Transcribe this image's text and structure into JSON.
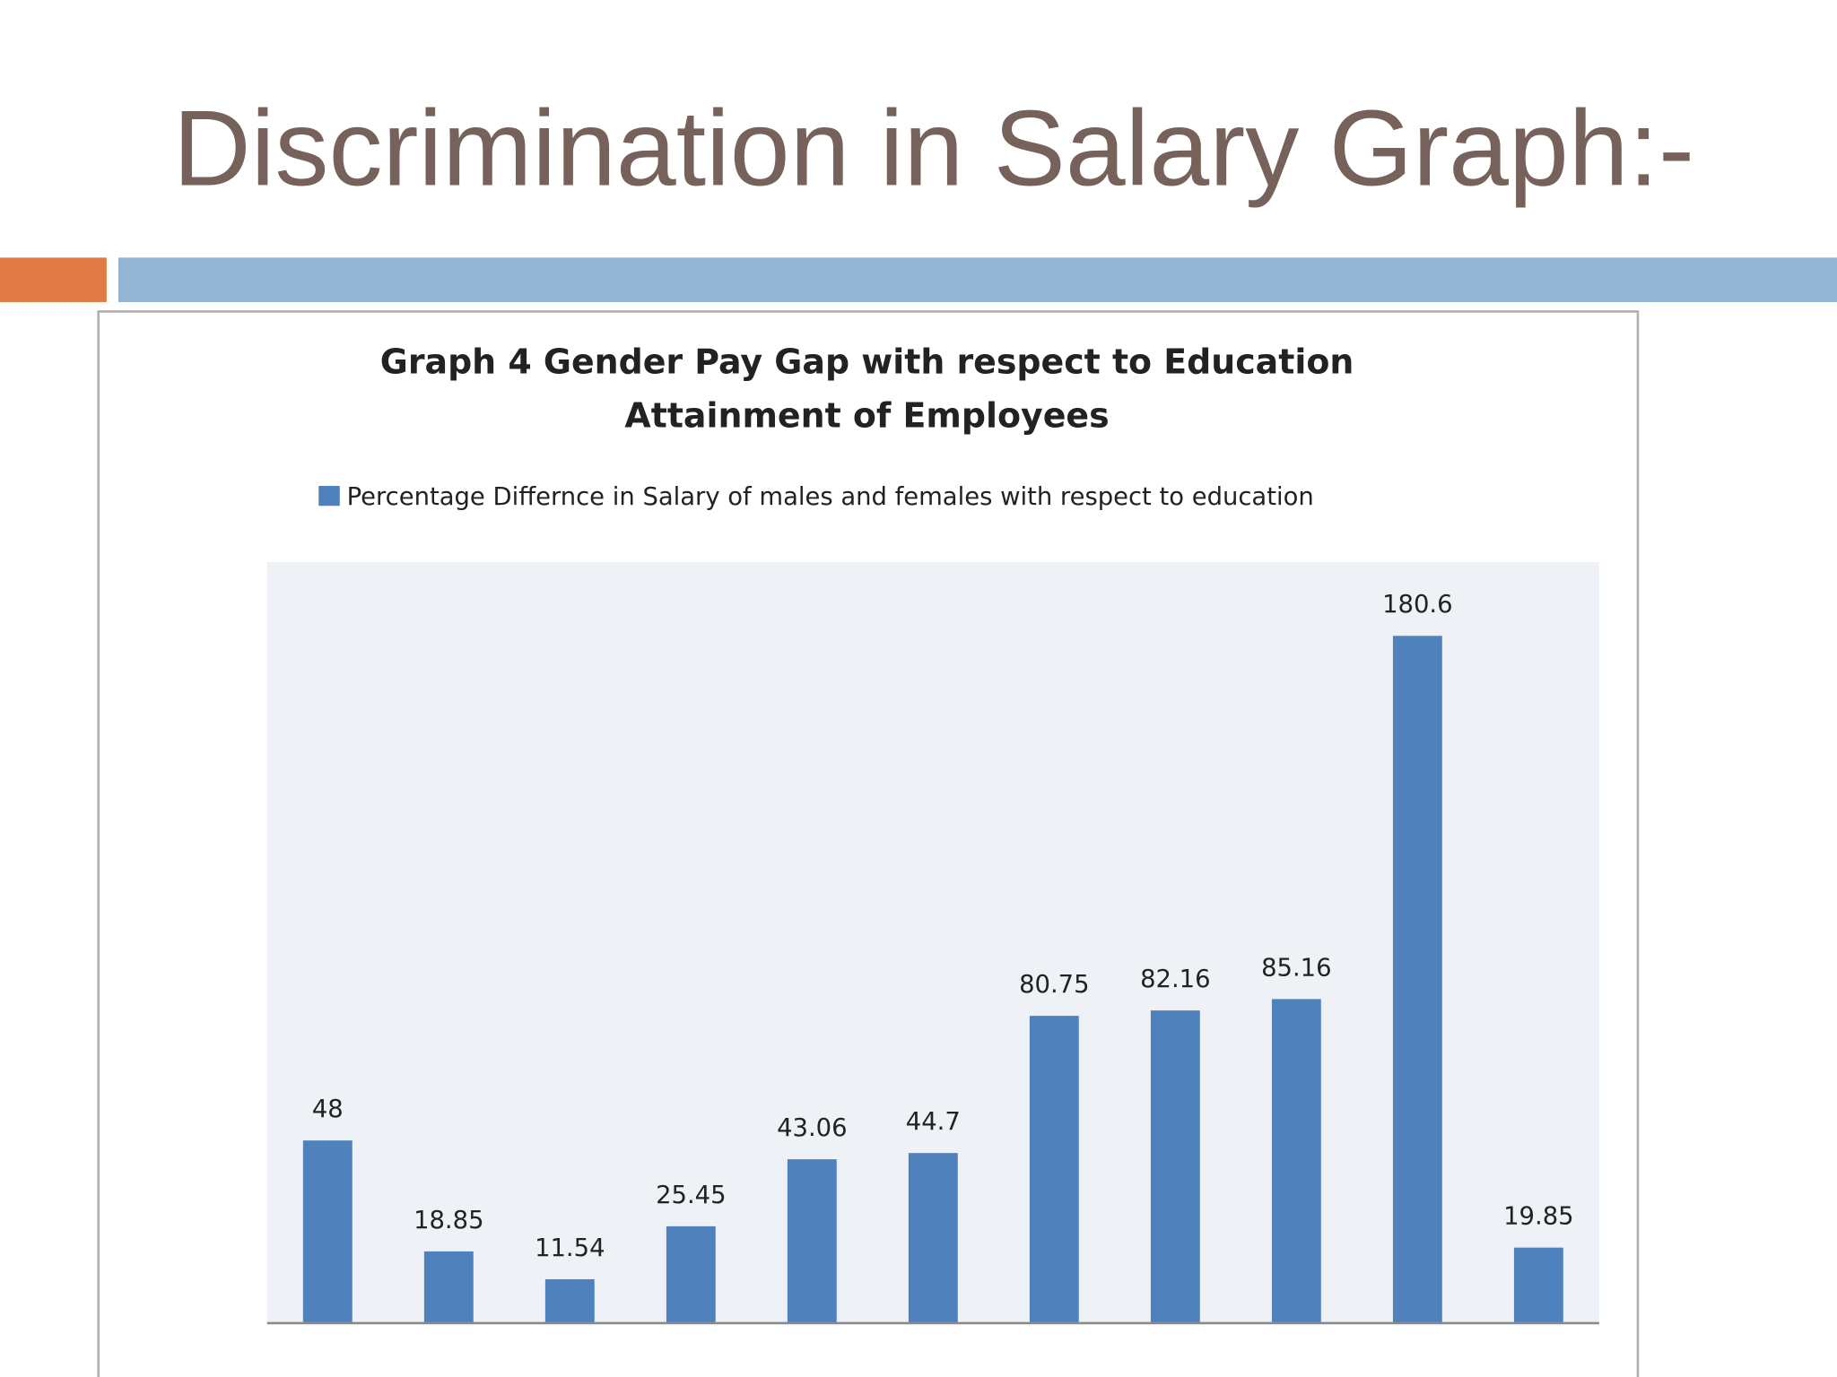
{
  "slide": {
    "title": "Discrimination in Salary Graph:-"
  },
  "chart_data": {
    "type": "bar",
    "title": "Graph 4 Gender Pay Gap with respect to Education Attainment of Employees",
    "categories": [
      null,
      null,
      null,
      null,
      null,
      null,
      null,
      null,
      null,
      null,
      null
    ],
    "series": [
      {
        "name": "Percentage Differnce in Salary of males and females with respect to education",
        "color": "#4f81bd",
        "values": [
          48,
          18.85,
          11.54,
          25.45,
          43.06,
          44.7,
          80.75,
          82.16,
          85.16,
          180.6,
          19.85
        ]
      }
    ],
    "ylim": [
      0,
      200
    ],
    "grid": false,
    "legend": "top"
  }
}
